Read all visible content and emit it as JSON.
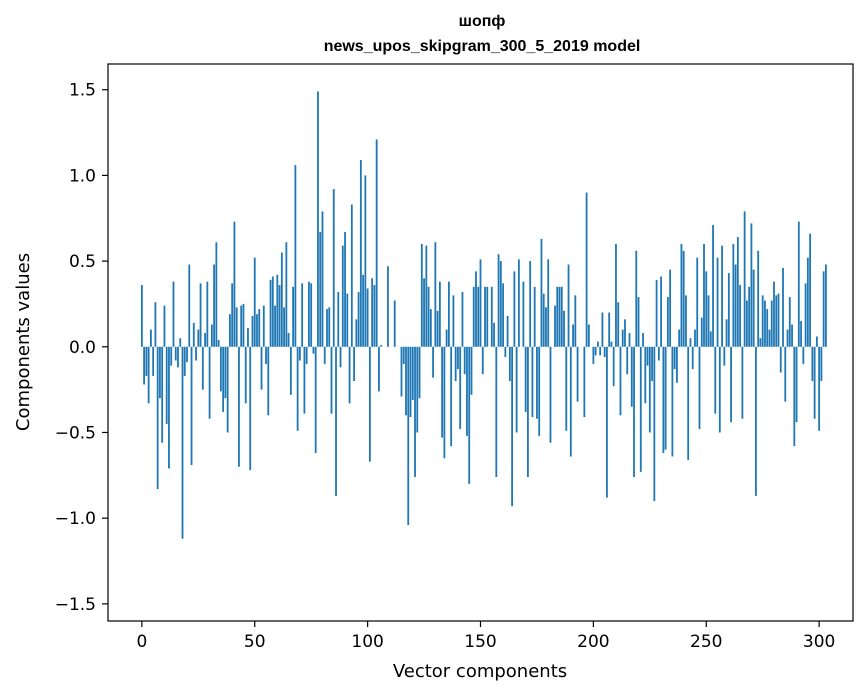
{
  "chart_data": {
    "type": "bar",
    "title": "шопф",
    "subtitle": "news_upos_skipgram_300_5_2019 model",
    "xlabel": "Vector components",
    "ylabel": "Components values",
    "xlim": [
      -15,
      315
    ],
    "ylim": [
      -1.6,
      1.65
    ],
    "xticks": [
      0,
      50,
      100,
      150,
      200,
      250,
      300
    ],
    "xtick_labels": [
      "0",
      "50",
      "100",
      "150",
      "200",
      "250",
      "300"
    ],
    "yticks": [
      -1.5,
      -1.0,
      -0.5,
      0.0,
      0.5,
      1.0,
      1.5
    ],
    "ytick_labels": [
      "−1.5",
      "−1.0",
      "−0.5",
      "0.0",
      "0.5",
      "1.0",
      "1.5"
    ],
    "grid": false,
    "bar_color": "#1f77b4",
    "values": [
      0.36,
      -0.22,
      -0.17,
      -0.33,
      0.1,
      -0.17,
      0.26,
      -0.83,
      -0.3,
      -0.56,
      0.24,
      -0.45,
      -0.71,
      -0.11,
      0.38,
      -0.08,
      -0.12,
      0.05,
      -1.12,
      -0.17,
      -0.09,
      0.48,
      -0.69,
      0.14,
      -0.08,
      0.1,
      0.37,
      -0.25,
      0.08,
      0.38,
      -0.42,
      0.13,
      0.48,
      0.61,
      0.04,
      -0.26,
      -0.38,
      -0.3,
      -0.5,
      0.19,
      0.37,
      0.73,
      0.23,
      -0.7,
      0.24,
      0.25,
      -0.33,
      0.11,
      -0.72,
      0.18,
      0.52,
      0.19,
      0.22,
      -0.25,
      0.24,
      -0.1,
      -0.4,
      0.39,
      0.41,
      0.24,
      0.42,
      0.36,
      0.55,
      0.23,
      0.61,
      0.08,
      -0.28,
      0.35,
      1.06,
      -0.49,
      -0.08,
      0.37,
      -0.39,
      -0.1,
      0.38,
      0.37,
      -0.04,
      -0.62,
      1.49,
      0.67,
      0.79,
      -0.1,
      0.22,
      0.23,
      -0.39,
      0.92,
      -0.87,
      0.32,
      -0.12,
      0.59,
      0.67,
      0.31,
      -0.33,
      0.83,
      -0.2,
      0.16,
      0.32,
      1.09,
      0.42,
      1.0,
      0.34,
      -0.67,
      0.4,
      0.36,
      1.21,
      -0.26,
      0.01,
      0.0,
      0.0,
      0.47,
      0.0,
      0.0,
      0.27,
      0.0,
      0.0,
      -0.29,
      -0.1,
      -0.4,
      -1.04,
      -0.41,
      -0.31,
      -0.76,
      -0.5,
      -0.3,
      0.6,
      0.4,
      0.59,
      0.35,
      0.22,
      -0.18,
      0.61,
      0.21,
      0.38,
      -0.53,
      -0.65,
      0.1,
      0.38,
      -0.58,
      0.3,
      -0.2,
      -0.13,
      -0.48,
      0.32,
      -0.16,
      -0.52,
      -0.8,
      -0.28,
      0.35,
      0.44,
      0.35,
      0.51,
      -0.16,
      0.35,
      0.35,
      0.0,
      0.35,
      0.14,
      -0.76,
      0.54,
      0.5,
      0.37,
      -0.06,
      0.18,
      -0.2,
      -0.93,
      0.44,
      -0.5,
      0.51,
      0.0,
      0.38,
      -0.38,
      -0.76,
      0.5,
      -0.41,
      0.35,
      -0.42,
      -0.52,
      0.63,
      0.31,
      0.23,
      0.51,
      -0.56,
      0.0,
      0.24,
      0.35,
      0.35,
      0.35,
      0.21,
      -0.49,
      0.48,
      -0.64,
      0.13,
      0.3,
      -0.32,
      0.0,
      0.0,
      -0.41,
      0.9,
      0.13,
      0.0,
      -0.1,
      -0.05,
      0.03,
      -0.05,
      0.2,
      -0.06,
      -0.88,
      0.2,
      0.03,
      -0.23,
      0.6,
      0.26,
      -0.4,
      0.1,
      0.16,
      -0.16,
      0.08,
      -0.35,
      -0.76,
      0.56,
      0.29,
      -0.73,
      0.08,
      -0.33,
      -0.11,
      -0.5,
      -0.2,
      -0.9,
      0.39,
      -0.08,
      0.41,
      -0.62,
      -0.6,
      0.29,
      0.45,
      -0.64,
      -0.13,
      -0.21,
      0.1,
      0.6,
      0.56,
      0.3,
      -0.66,
      0.05,
      -0.13,
      0.1,
      0.52,
      -0.48,
      0.17,
      0.6,
      0.44,
      0.3,
      0.09,
      0.71,
      -0.39,
      0.52,
      -0.5,
      0.59,
      -0.11,
      0.16,
      0.43,
      -0.44,
      0.6,
      0.48,
      0.64,
      0.36,
      -0.42,
      0.79,
      0.27,
      0.35,
      0.72,
      0.45,
      -0.87,
      0.56,
      0.05,
      0.3,
      0.27,
      0.22,
      0.1,
      0.27,
      0.38,
      0.3,
      0.31,
      -0.15,
      0.46,
      -0.32,
      0.1,
      0.29,
      0.13,
      -0.58,
      -0.44,
      0.73,
      0.15,
      -0.1,
      0.37,
      0.52,
      0.66,
      -0.2,
      -0.42,
      0.06,
      -0.49,
      -0.2,
      0.44,
      0.48
    ]
  }
}
